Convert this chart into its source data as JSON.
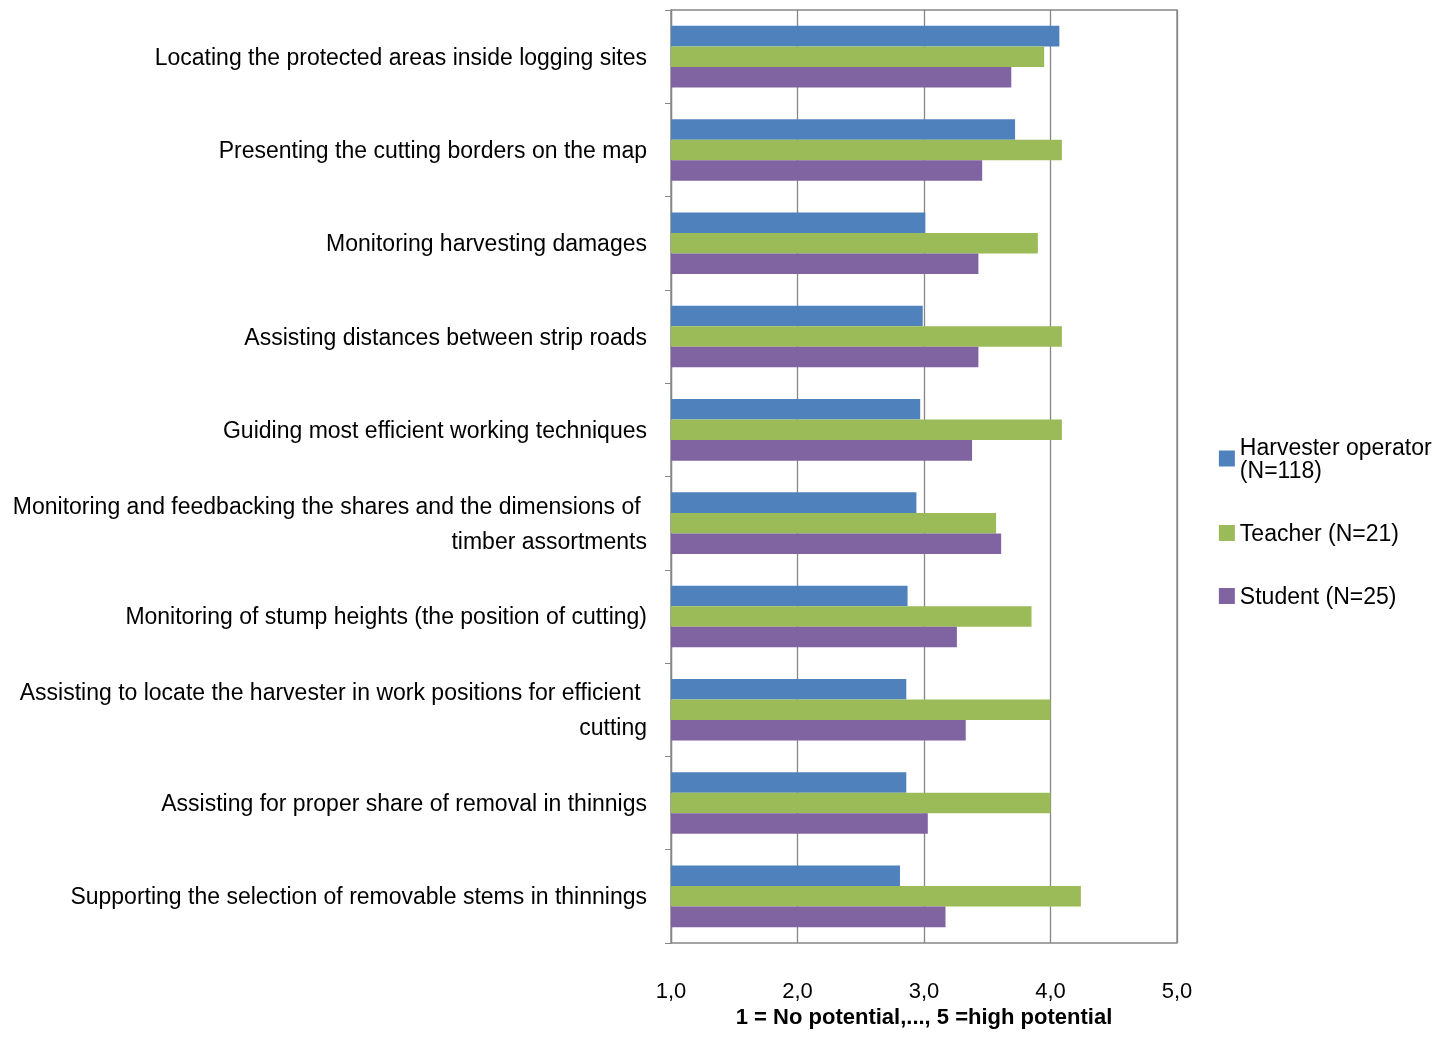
{
  "chart_data": {
    "type": "bar",
    "orientation": "horizontal",
    "xlabel": "1 = No potential,..., 5 =high potential",
    "categories": [
      "Locating the protected areas inside logging sites",
      "Presenting the cutting borders on the map",
      "Monitoring harvesting damages",
      "Assisting distances between strip roads",
      "Guiding most efficient working techniques",
      "Monitoring and feedbacking the shares and the dimensions of timber assortments",
      "Monitoring of stump heights (the position of cutting)",
      "Assisting to locate the harvester in work positions for efficient cutting",
      "Assisting for proper share of removal in thinnigs",
      "Supporting the selection of removable stems in thinnings"
    ],
    "series": [
      {
        "name": "Harvester operator (N=118)",
        "color": "#4f81bd",
        "values": [
          4.07,
          3.72,
          3.01,
          2.99,
          2.97,
          2.94,
          2.87,
          2.86,
          2.86,
          2.81
        ]
      },
      {
        "name": "Teacher (N=21)",
        "color": "#9bbb59",
        "values": [
          3.95,
          4.09,
          3.9,
          4.09,
          4.09,
          3.57,
          3.85,
          4.0,
          4.0,
          4.24
        ]
      },
      {
        "name": "Student (N=25)",
        "color": "#8064a2",
        "values": [
          3.69,
          3.46,
          3.43,
          3.43,
          3.38,
          3.61,
          3.26,
          3.33,
          3.03,
          3.17
        ]
      }
    ],
    "xlim": [
      1,
      5
    ],
    "xticks": [
      {
        "value": 1,
        "label": "1,0"
      },
      {
        "value": 2,
        "label": "2,0"
      },
      {
        "value": 3,
        "label": "3,0"
      },
      {
        "value": 4,
        "label": "4,0"
      },
      {
        "value": 5,
        "label": "5,0"
      }
    ],
    "grid": "x",
    "legend": "right"
  }
}
